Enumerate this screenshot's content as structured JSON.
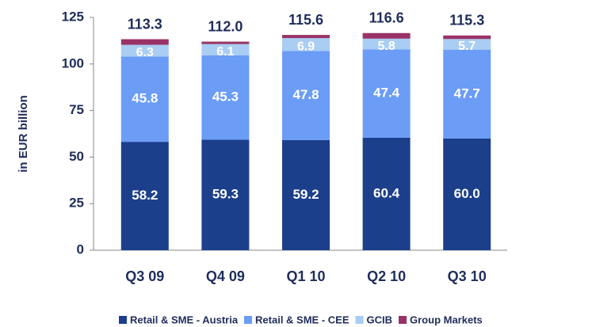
{
  "chart_data": {
    "type": "stacked_bar",
    "y_label": "in EUR billion",
    "categories": [
      "Q3 09",
      "Q4 09",
      "Q1 10",
      "Q2 10",
      "Q3 10"
    ],
    "series": [
      {
        "name": "Retail & SME - Austria",
        "color": "#1c3f8c",
        "values": [
          58.2,
          59.3,
          59.2,
          60.4,
          60.0
        ],
        "value_labels": [
          "58.2",
          "59.3",
          "59.2",
          "60.4",
          "60.0"
        ]
      },
      {
        "name": "Retail & SME - CEE",
        "color": "#6b9cf6",
        "values": [
          45.8,
          45.3,
          47.8,
          47.4,
          47.7
        ]
      },
      {
        "name": "GCIB",
        "color": "#a9cdf3",
        "values": [
          6.3,
          6.1,
          6.9,
          5.8,
          5.7
        ]
      },
      {
        "name": "Group Markets",
        "color": "#993366",
        "values": [
          3.0,
          1.3,
          1.7,
          3.0,
          1.9
        ]
      }
    ],
    "totals": [
      "113.3",
      "112.0",
      "115.6",
      "116.6",
      "115.3"
    ],
    "ylim": [
      0,
      125
    ],
    "yticks": [
      0,
      25,
      50,
      75,
      100,
      125
    ]
  }
}
